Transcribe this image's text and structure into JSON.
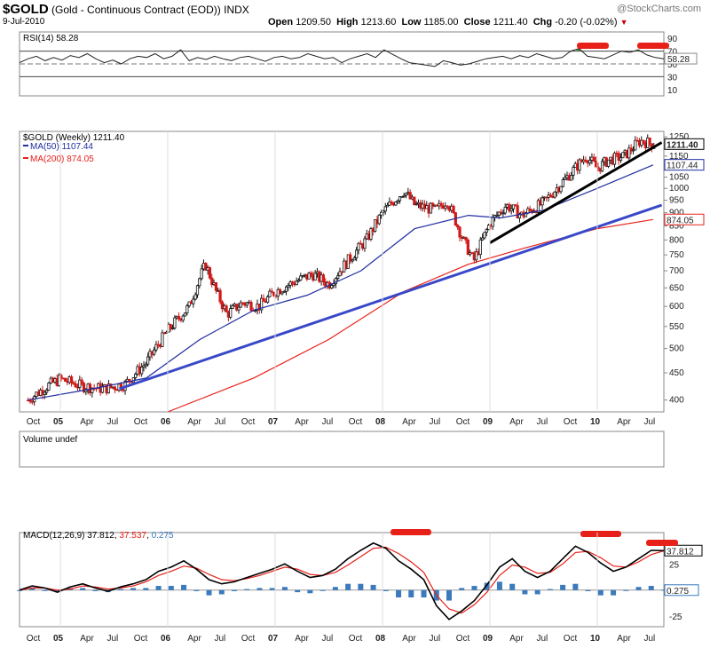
{
  "header": {
    "symbol": "$GOLD",
    "name": "(Gold - Continuous Contract (EOD))",
    "exchange": "INDX",
    "date": "9-Jul-2010",
    "open_label": "Open",
    "open": "1209.50",
    "high_label": "High",
    "high": "1213.60",
    "low_label": "Low",
    "low": "1185.00",
    "close_label": "Close",
    "close": "1211.40",
    "chg_label": "Chg",
    "chg": "-0.20 (-0.02%)",
    "brand": "@StockCharts.com"
  },
  "colors": {
    "ma50": "#1f2ea0",
    "ma200": "#e8201a",
    "trend_blue": "#3848c8",
    "trend_black": "#000000",
    "macd_signal": "#e8201a",
    "macd_hist": "#3a7abd",
    "rsi_fill": "#5a8a50",
    "marker": "#e8201a"
  },
  "chart_data": [
    {
      "type": "line",
      "title": "RSI(14) 58.28",
      "ylim": [
        0,
        100
      ],
      "yticks": [
        90,
        70,
        50,
        30,
        10
      ],
      "reference_lines": [
        70,
        30
      ],
      "last_value": "58.28",
      "series": [
        {
          "name": "RSI(14)",
          "values": [
            52,
            58,
            62,
            55,
            60,
            56,
            63,
            60,
            66,
            58,
            52,
            56,
            50,
            58,
            62,
            60,
            66,
            58,
            62,
            72,
            55,
            60,
            57,
            62,
            58,
            55,
            60,
            62,
            58,
            54,
            60,
            62,
            58,
            60,
            66,
            62,
            58,
            60,
            52,
            58,
            62,
            66,
            60,
            72,
            65,
            58,
            52,
            50,
            48,
            46,
            55,
            52,
            48,
            50,
            54,
            58,
            60,
            62,
            58,
            63,
            60,
            66,
            62,
            58,
            60,
            70,
            74,
            62,
            60,
            58,
            64,
            70,
            68,
            72,
            64,
            60,
            58
          ]
        }
      ],
      "highlight_markers": [
        "Oct 09",
        "Jun 10"
      ]
    },
    {
      "type": "candlestick",
      "title": "$GOLD (Weekly) 1211.40",
      "yscale": "log",
      "ylim": [
        380,
        1280
      ],
      "yticks": [
        1250,
        1200,
        1150,
        1100,
        1050,
        1000,
        950,
        900,
        850,
        800,
        750,
        700,
        650,
        600,
        550,
        500,
        450,
        400
      ],
      "xticks": [
        "Oct",
        "05",
        "Apr",
        "Jul",
        "Oct",
        "06",
        "Apr",
        "Jul",
        "Oct",
        "07",
        "Apr",
        "Jul",
        "Oct",
        "08",
        "Apr",
        "Jul",
        "Oct",
        "09",
        "Apr",
        "Jul",
        "Oct",
        "10",
        "Apr",
        "Jul"
      ],
      "price_path": [
        [
          2004.7,
          400
        ],
        [
          2004.9,
          428
        ],
        [
          2005.0,
          438
        ],
        [
          2005.2,
          425
        ],
        [
          2005.4,
          420
        ],
        [
          2005.6,
          428
        ],
        [
          2005.8,
          470
        ],
        [
          2006.0,
          540
        ],
        [
          2006.2,
          600
        ],
        [
          2006.35,
          720
        ],
        [
          2006.45,
          640
        ],
        [
          2006.55,
          580
        ],
        [
          2006.7,
          610
        ],
        [
          2006.85,
          600
        ],
        [
          2007.0,
          640
        ],
        [
          2007.2,
          670
        ],
        [
          2007.35,
          690
        ],
        [
          2007.5,
          660
        ],
        [
          2007.7,
          740
        ],
        [
          2007.85,
          800
        ],
        [
          2008.0,
          900
        ],
        [
          2008.2,
          990
        ],
        [
          2008.3,
          930
        ],
        [
          2008.5,
          910
        ],
        [
          2008.6,
          950
        ],
        [
          2008.75,
          800
        ],
        [
          2008.85,
          730
        ],
        [
          2009.0,
          860
        ],
        [
          2009.15,
          930
        ],
        [
          2009.3,
          890
        ],
        [
          2009.5,
          940
        ],
        [
          2009.7,
          1040
        ],
        [
          2009.9,
          1150
        ],
        [
          2010.0,
          1090
        ],
        [
          2010.1,
          1130
        ],
        [
          2010.25,
          1150
        ],
        [
          2010.4,
          1230
        ],
        [
          2010.52,
          1211
        ]
      ],
      "legend": [
        {
          "name": "$GOLD (Weekly)",
          "value": "1211.40"
        },
        {
          "name": "MA(50)",
          "value": "1107.44"
        },
        {
          "name": "MA(200)",
          "value": "874.05"
        }
      ],
      "last_value_labels": {
        "close": "1211.40",
        "ma50": "1107.44",
        "ma200": "874.05"
      },
      "ma50": [
        [
          2004.7,
          400
        ],
        [
          2005.3,
          420
        ],
        [
          2005.8,
          440
        ],
        [
          2006.3,
          520
        ],
        [
          2006.8,
          590
        ],
        [
          2007.3,
          630
        ],
        [
          2007.8,
          700
        ],
        [
          2008.3,
          840
        ],
        [
          2008.8,
          890
        ],
        [
          2009.1,
          880
        ],
        [
          2009.5,
          910
        ],
        [
          2010.0,
          1000
        ],
        [
          2010.52,
          1107
        ]
      ],
      "ma200": [
        [
          2006.0,
          380
        ],
        [
          2006.8,
          440
        ],
        [
          2007.5,
          520
        ],
        [
          2008.2,
          640
        ],
        [
          2008.8,
          720
        ],
        [
          2009.3,
          770
        ],
        [
          2010.0,
          840
        ],
        [
          2010.52,
          874
        ]
      ],
      "trendlines": [
        {
          "color": "blue",
          "from": [
            2005.55,
            420
          ],
          "to": [
            2010.6,
            930
          ]
        },
        {
          "color": "black",
          "from": [
            2009.0,
            790
          ],
          "to": [
            2010.6,
            1220
          ]
        }
      ]
    },
    {
      "type": "bar",
      "title": "Volume undef",
      "values": []
    },
    {
      "type": "line",
      "title": "MACD(12,26,9) 37.812, 37.537, 0.275",
      "ylim": [
        -35,
        55
      ],
      "yticks": [
        25,
        -25
      ],
      "series": [
        {
          "name": "MACD(12,26,9)",
          "value": "37.812",
          "values": [
            0,
            4,
            2,
            -2,
            3,
            6,
            2,
            -1,
            3,
            6,
            10,
            18,
            22,
            28,
            20,
            10,
            6,
            8,
            12,
            16,
            20,
            25,
            18,
            12,
            14,
            20,
            30,
            38,
            45,
            40,
            28,
            20,
            10,
            -15,
            -28,
            -20,
            -10,
            5,
            22,
            30,
            18,
            12,
            18,
            30,
            42,
            36,
            26,
            18,
            22,
            30,
            38,
            37.8
          ]
        },
        {
          "name": "Signal",
          "value": "37.537",
          "values": [
            0,
            2,
            2,
            0,
            1,
            4,
            3,
            1,
            2,
            4,
            8,
            14,
            18,
            23,
            21,
            15,
            10,
            9,
            11,
            14,
            18,
            22,
            20,
            15,
            14,
            17,
            24,
            32,
            40,
            41,
            35,
            27,
            17,
            -5,
            -18,
            -22,
            -14,
            -2,
            14,
            24,
            22,
            16,
            17,
            25,
            36,
            37,
            31,
            23,
            22,
            27,
            34,
            37.5
          ]
        },
        {
          "name": "Histogram",
          "value": "0.275"
        }
      ],
      "xticks": [
        "Oct",
        "05",
        "Apr",
        "Jul",
        "Oct",
        "06",
        "Apr",
        "Jul",
        "Oct",
        "07",
        "Apr",
        "Jul",
        "Oct",
        "08",
        "Apr",
        "Jul",
        "Oct",
        "09",
        "Apr",
        "Jul",
        "Oct",
        "10",
        "Apr",
        "Jul"
      ],
      "highlight_markers": [
        "Mar 08",
        "Dec 09",
        "Jun 10"
      ]
    }
  ]
}
